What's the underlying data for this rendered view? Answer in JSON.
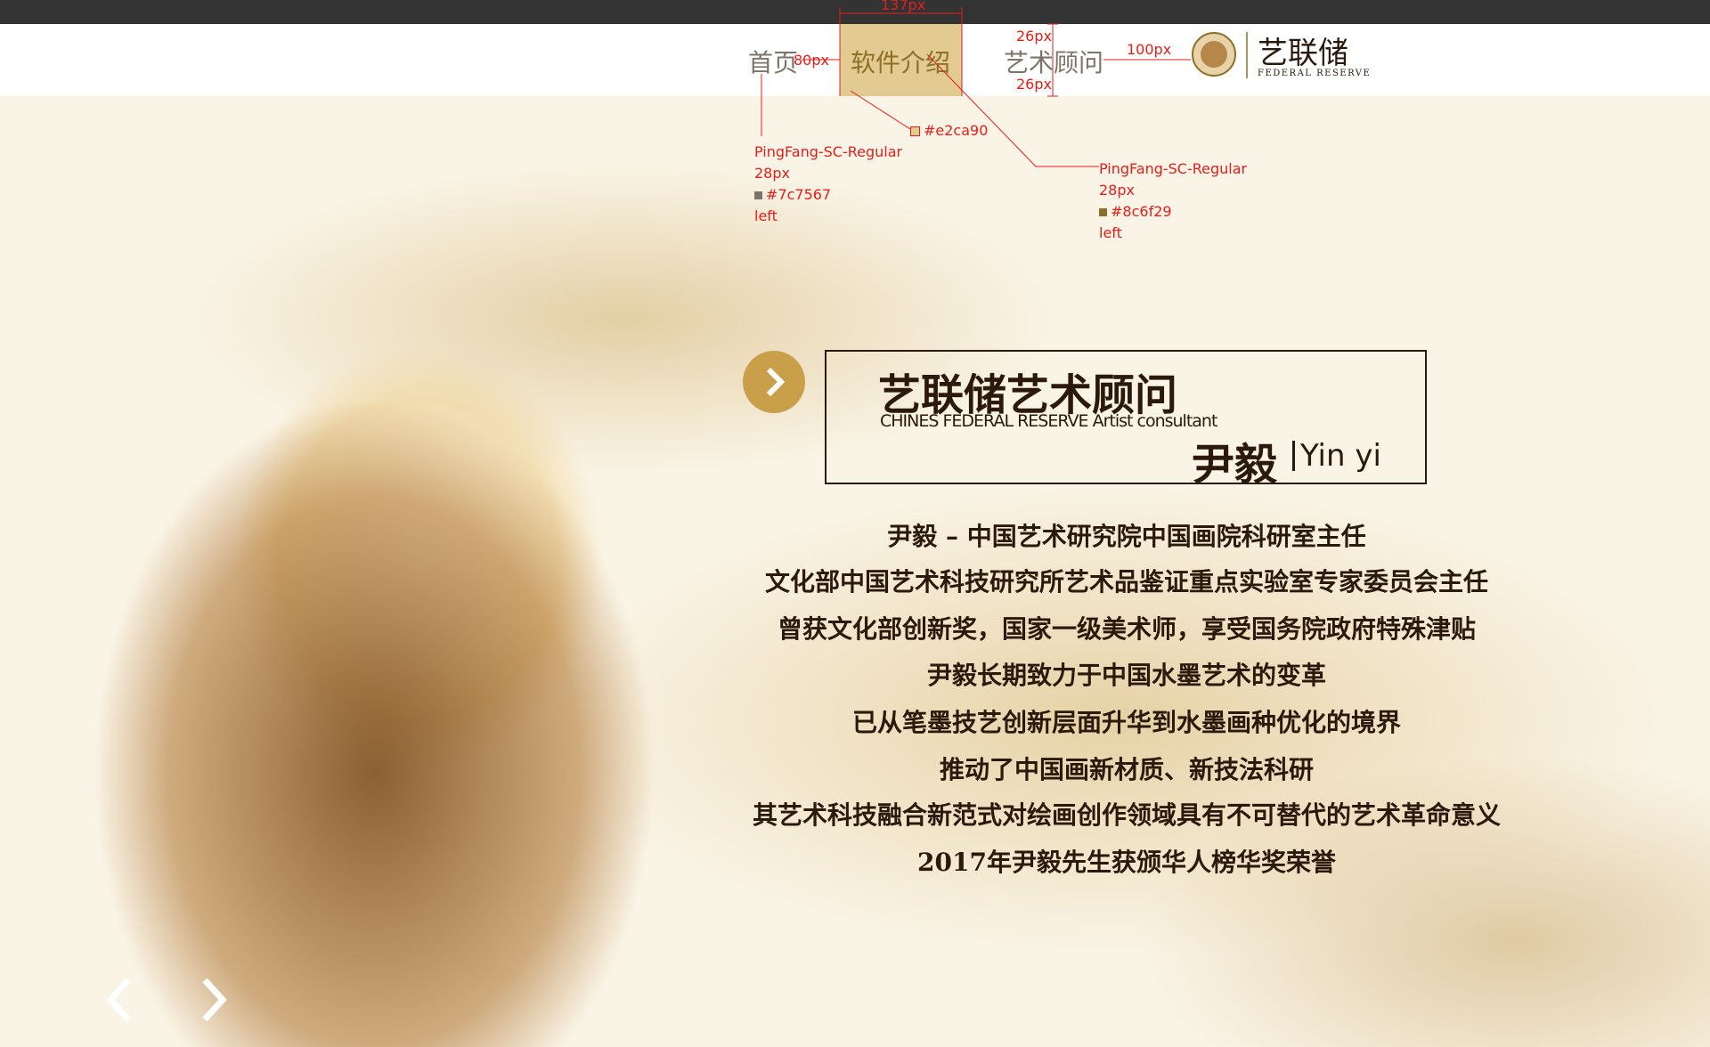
{
  "header": {
    "nav": [
      "首页",
      "软件介绍",
      "艺术顾问"
    ],
    "logo": {
      "title": "艺联储",
      "subtitle": "FEDERAL RESERVE"
    }
  },
  "annotations": {
    "dimensions": [
      "137px",
      "80px",
      "26px",
      "26px",
      "100px"
    ],
    "color_note": "#e2ca90",
    "left_note": [
      "PingFang-SC-Regular",
      "28px",
      "#7c7567",
      "left"
    ],
    "right_note": [
      "PingFang-SC-Regular",
      "28px",
      "#8c6f29",
      "left"
    ]
  },
  "hero": {
    "title": "艺联储艺术顾问",
    "subtitle": "CHINES FEDERAL RESERVE Artist consultant",
    "name": "尹毅",
    "name_en": "Yin yi",
    "bio": [
      "尹毅 – 中国艺术研究院中国画院科研室主任",
      "文化部中国艺术科技研究所艺术品鉴证重点实验室专家委员会主任",
      "曾获文化部创新奖，国家一级美术师，享受国务院政府特殊津贴",
      "尹毅长期致力于中国水墨艺术的变革",
      "已从笔墨技艺创新层面升华到水墨画种优化的境界",
      "推动了中国画新材质、新技法科研",
      "其艺术科技融合新范式对绘画创作领域具有不可替代的艺术革命意义",
      "2017年尹毅先生获颁华人榜华奖荣誉"
    ]
  }
}
